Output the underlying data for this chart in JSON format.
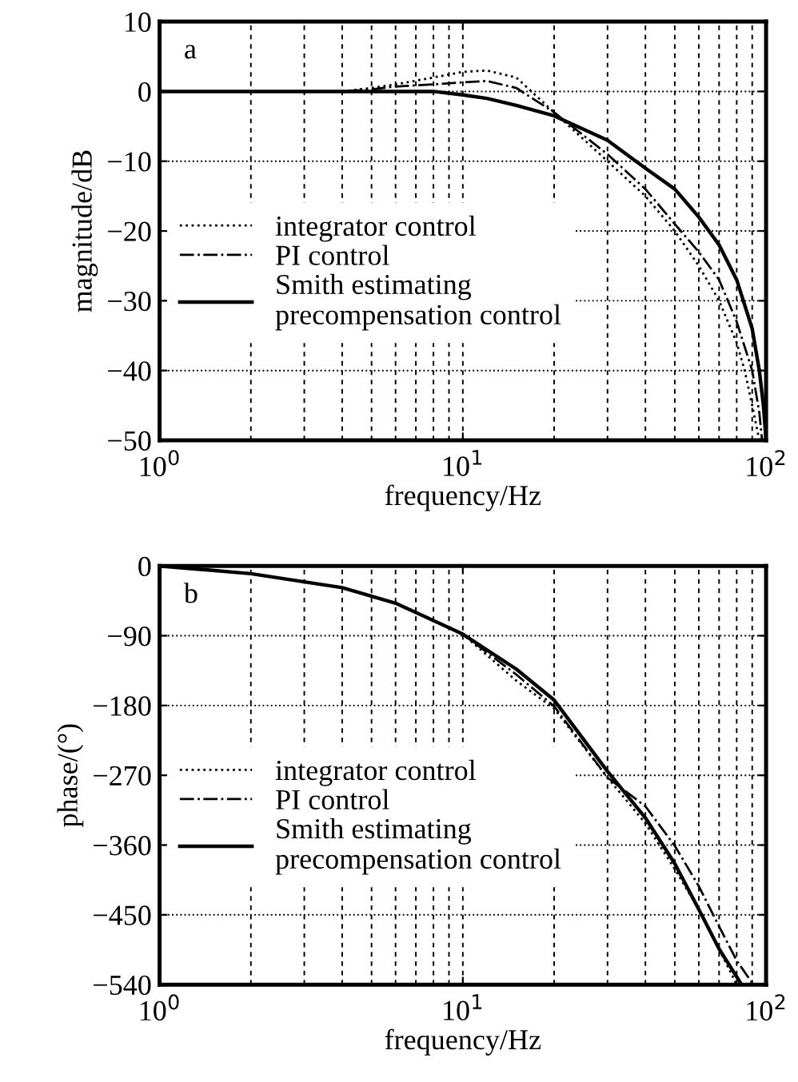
{
  "chart_data": [
    {
      "type": "line",
      "xlabel": "frequency/Hz",
      "ylabel": "magnitude/dB",
      "annotations": [
        "a"
      ],
      "log": "x",
      "grid": true,
      "legend": "left",
      "xlim": [
        1,
        100
      ],
      "xticks": [
        {
          "value": 1,
          "label": "10$^{0}$"
        },
        {
          "value": 10,
          "label": "10$^{1}$"
        },
        {
          "value": 100,
          "label": "10$^{2}$"
        }
      ],
      "ylim": [
        -50,
        10
      ],
      "yticks": [
        -50,
        -40,
        -30,
        -20,
        -10,
        0,
        10
      ],
      "series": [
        {
          "name": "integrator control",
          "color": "#000000",
          "line_style": "dotted",
          "x": [
            1.2,
            2,
            4,
            5,
            6,
            8,
            10,
            12,
            15,
            20,
            30,
            40,
            50,
            60,
            70,
            80,
            85,
            90,
            95
          ],
          "values": [
            0,
            0,
            0,
            0.5,
            1,
            2,
            2.8,
            3,
            2,
            -3,
            -10,
            -15,
            -20,
            -25,
            -30,
            -36,
            -40,
            -45,
            -50
          ]
        },
        {
          "name": "PI control",
          "color": "#000000",
          "line_style": "dashdot",
          "x": [
            1,
            2,
            4,
            5,
            6,
            8,
            10,
            12,
            15,
            20,
            30,
            40,
            50,
            60,
            70,
            80,
            90,
            95,
            97
          ],
          "values": [
            0,
            0,
            0,
            0.3,
            0.7,
            1,
            1.3,
            1.5,
            0.5,
            -3,
            -9,
            -14,
            -19,
            -23,
            -27,
            -33,
            -40,
            -46,
            -50
          ]
        },
        {
          "name": "Smith estimating\nprecompensation control",
          "color": "#000000",
          "line_style": "solid",
          "x": [
            1,
            2,
            4,
            6,
            8,
            10,
            12,
            15,
            20,
            30,
            40,
            50,
            60,
            70,
            80,
            90,
            95,
            98,
            100
          ],
          "values": [
            0,
            0,
            0,
            0,
            0,
            -0.5,
            -1,
            -2,
            -3.5,
            -7,
            -11,
            -14,
            -18,
            -22,
            -27,
            -34,
            -40,
            -45,
            -50
          ]
        }
      ]
    },
    {
      "type": "line",
      "xlabel": "frequency/Hz",
      "ylabel": "phase/(°)",
      "annotations": [
        "b"
      ],
      "log": "x",
      "grid": true,
      "legend": "left",
      "xlim": [
        1,
        100
      ],
      "xticks": [
        {
          "value": 1,
          "label": "10$^{0}$"
        },
        {
          "value": 10,
          "label": "10$^{1}$"
        },
        {
          "value": 100,
          "label": "10$^{2}$"
        }
      ],
      "ylim": [
        -540,
        0
      ],
      "yticks": [
        -540,
        -450,
        -360,
        -270,
        -180,
        -90,
        0
      ],
      "series": [
        {
          "name": "integrator control",
          "color": "#000000",
          "line_style": "dotted",
          "x": [
            1.2,
            2,
            4,
            6,
            10,
            15,
            20,
            30,
            40,
            50,
            60,
            70,
            80
          ],
          "values": [
            -2,
            -10,
            -28,
            -48,
            -88,
            -148,
            -184,
            -273,
            -332,
            -391,
            -443,
            -494,
            -540
          ]
        },
        {
          "name": "PI control",
          "color": "#000000",
          "line_style": "dashdot",
          "x": [
            1,
            2,
            4,
            6,
            10,
            15,
            20,
            30,
            40,
            50,
            60,
            70,
            80,
            90,
            91
          ],
          "values": [
            0,
            -10,
            -28,
            -48,
            -88,
            -140,
            -181,
            -273,
            -310,
            -361,
            -413,
            -465,
            -509,
            -538,
            -540
          ]
        },
        {
          "name": "Smith estimating\nprecompensation control",
          "color": "#000000",
          "line_style": "solid",
          "x": [
            1,
            2,
            4,
            6,
            10,
            15,
            20,
            30,
            40,
            50,
            60,
            70,
            80,
            83
          ],
          "values": [
            0,
            -10,
            -28,
            -48,
            -88,
            -133,
            -173,
            -265,
            -325,
            -384,
            -443,
            -494,
            -530,
            -540
          ]
        }
      ]
    }
  ]
}
